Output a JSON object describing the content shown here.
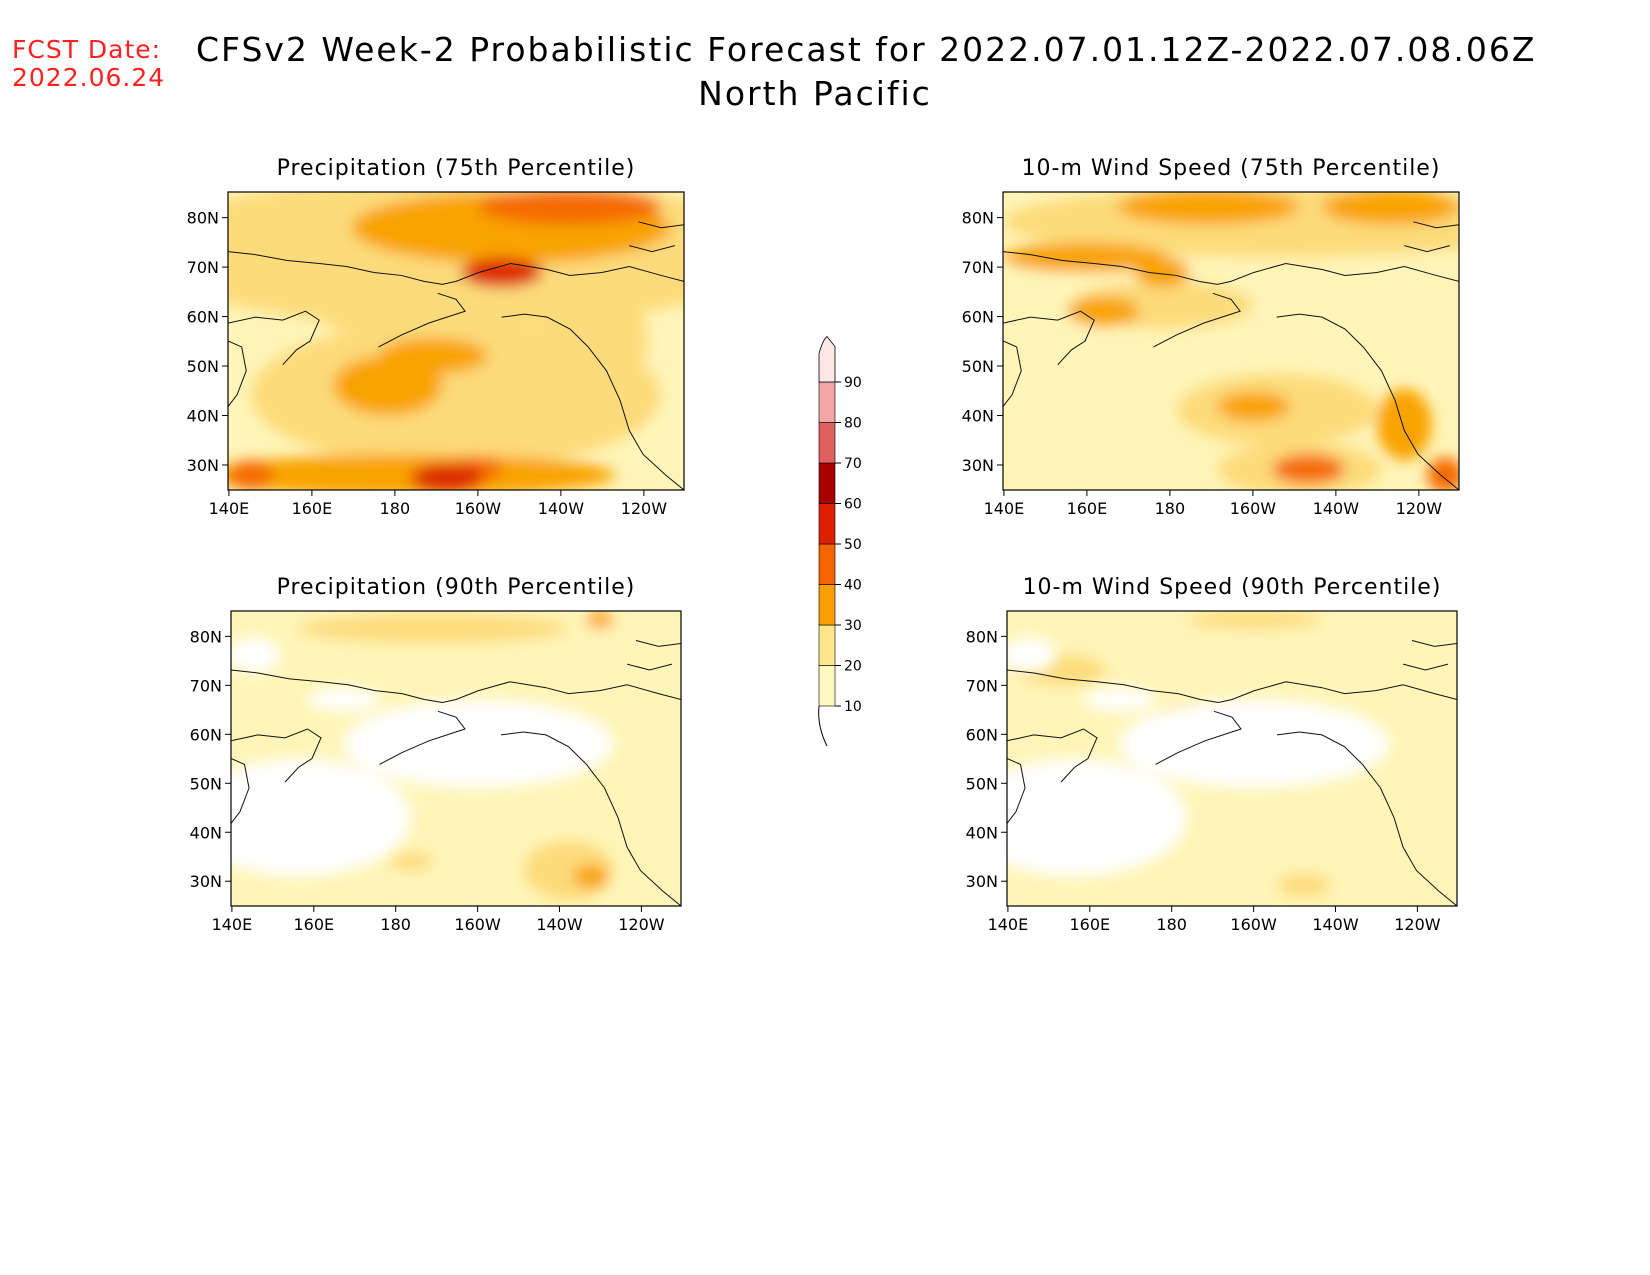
{
  "header": {
    "fcst_label": "FCST Date:",
    "fcst_date": "2022.06.24",
    "title": "CFSv2 Week-2 Probabilistic Forecast for 2022.07.01.12Z-2022.07.08.06Z",
    "subtitle": "North Pacific"
  },
  "panels": [
    {
      "title": "Precipitation (75th Percentile)"
    },
    {
      "title": "10-m Wind Speed (75th Percentile)"
    },
    {
      "title": "Precipitation (90th Percentile)"
    },
    {
      "title": "10-m Wind Speed (90th Percentile)"
    }
  ],
  "axes": {
    "lat_labels": [
      "80N",
      "70N",
      "60N",
      "50N",
      "40N",
      "30N"
    ],
    "lon_labels": [
      "140E",
      "160E",
      "180",
      "160W",
      "140W",
      "120W"
    ]
  },
  "colorbar": {
    "levels": [
      "10",
      "20",
      "30",
      "40",
      "50",
      "60",
      "70",
      "80",
      "90"
    ],
    "colors": [
      "#fff9c0",
      "#fde68c",
      "#f9a000",
      "#f56400",
      "#dd2000",
      "#a80000",
      "#e06060",
      "#f4a6a6",
      "#fde6e6"
    ]
  },
  "palette": {
    "fcst_color": "#ff2020",
    "bin_colors": [
      "#ffffff",
      "#fff5b8",
      "#fddb7a",
      "#f9a300",
      "#f56a00",
      "#dd2a00",
      "#a80000"
    ]
  }
}
